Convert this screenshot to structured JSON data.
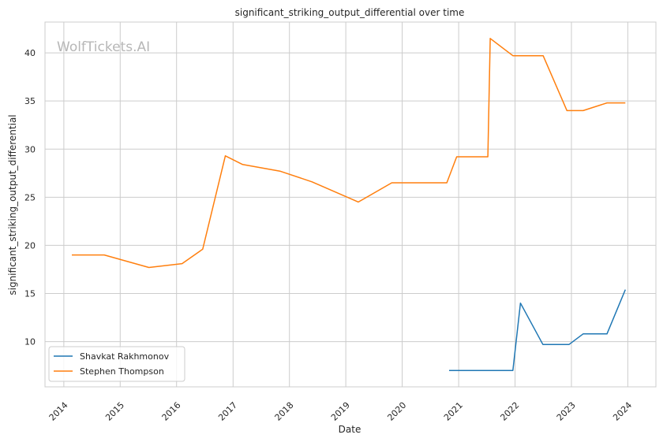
{
  "chart_data": {
    "type": "line",
    "title": "significant_striking_output_differential over time",
    "xlabel": "Date",
    "ylabel": "significant_striking_output_differential",
    "watermark": "WolfTickets.AI",
    "x_ticks": [
      "2014",
      "2015",
      "2016",
      "2017",
      "2018",
      "2019",
      "2020",
      "2021",
      "2022",
      "2023",
      "2024"
    ],
    "y_ticks": [
      10,
      15,
      20,
      25,
      30,
      35,
      40
    ],
    "xlim": [
      "2013-09-01",
      "2024-07-01"
    ],
    "ylim": [
      5.3,
      43.2
    ],
    "grid": true,
    "legend_position": "lower-left",
    "series": [
      {
        "name": "Shavkat Rakhmonov",
        "color": "#1f77b4",
        "points": [
          [
            "2020-10-31",
            7.0
          ],
          [
            "2021-12-18",
            7.0
          ],
          [
            "2022-02-05",
            14.0
          ],
          [
            "2022-06-30",
            9.7
          ],
          [
            "2022-12-17",
            9.7
          ],
          [
            "2023-03-18",
            10.8
          ],
          [
            "2023-08-19",
            10.8
          ],
          [
            "2023-12-16",
            15.4
          ]
        ]
      },
      {
        "name": "Stephen Thompson",
        "color": "#ff7f0e",
        "points": [
          [
            "2014-02-22",
            19.0
          ],
          [
            "2014-09-20",
            19.0
          ],
          [
            "2015-07-06",
            17.7
          ],
          [
            "2016-02-06",
            18.1
          ],
          [
            "2016-06-18",
            19.6
          ],
          [
            "2016-11-12",
            29.3
          ],
          [
            "2017-03-04",
            28.4
          ],
          [
            "2017-11-04",
            27.7
          ],
          [
            "2018-05-27",
            26.6
          ],
          [
            "2019-03-23",
            24.5
          ],
          [
            "2019-10-26",
            26.5
          ],
          [
            "2020-10-16",
            26.5
          ],
          [
            "2020-12-19",
            29.2
          ],
          [
            "2021-07-09",
            29.2
          ],
          [
            "2021-07-24",
            41.5
          ],
          [
            "2021-12-19",
            39.7
          ],
          [
            "2022-07-02",
            39.7
          ],
          [
            "2022-12-03",
            34.0
          ],
          [
            "2023-03-18",
            34.0
          ],
          [
            "2023-08-19",
            34.8
          ],
          [
            "2023-12-16",
            34.8
          ]
        ]
      }
    ]
  }
}
